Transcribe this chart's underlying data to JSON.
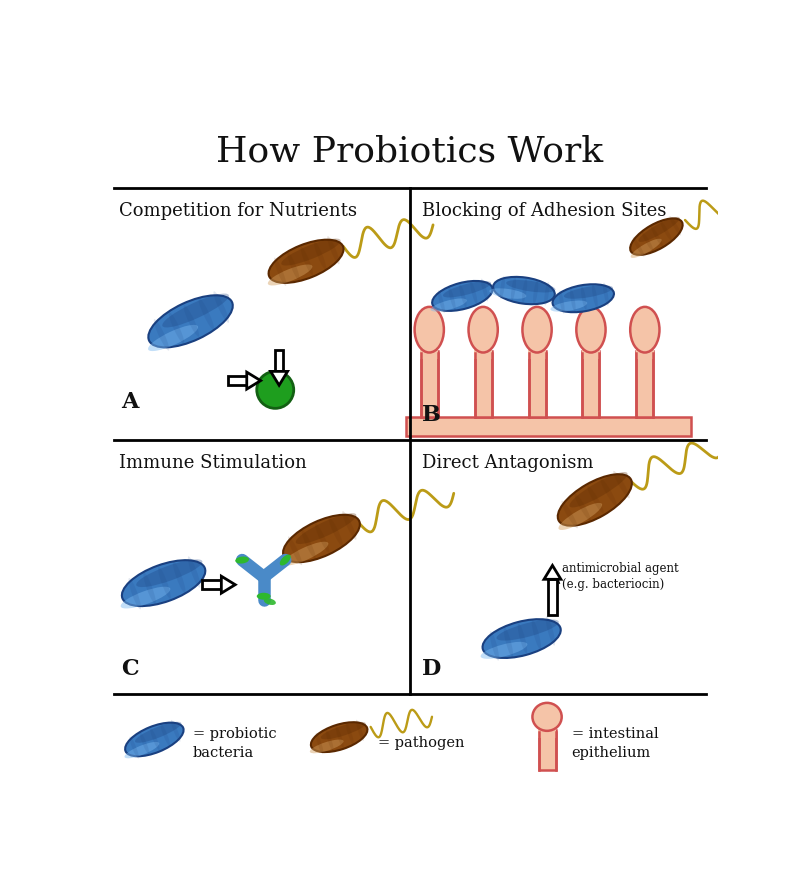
{
  "title": "How Probiotics Work",
  "title_fontsize": 26,
  "panel_titles": [
    "Competition for Nutrients",
    "Blocking of Adhesion Sites",
    "Immune Stimulation",
    "Direct Antagonism"
  ],
  "legend_labels": [
    "= probiotic\nbacteria",
    "= pathogen",
    "= intestinal\nepithelium"
  ],
  "bg_color": "#ffffff",
  "blue_color": "#3a7abf",
  "blue_dark": "#1a4080",
  "blue_light": "#7ab8f0",
  "brown_dark": "#5a2800",
  "brown_mid": "#8B4A10",
  "brown_light": "#c07830",
  "brown_highlight": "#d4a060",
  "flagella_color": "#b8960a",
  "green_circle": "#1e9e1e",
  "green_circle_dark": "#136013",
  "arrow_color": "#111111",
  "villi_fill": "#f5c4a8",
  "villi_outline": "#d05050",
  "villi_base": "#f0b090",
  "antibody_blue": "#4a8ac8",
  "antibody_green": "#2eb82e",
  "annotation_text": "antimicrobial agent\n(e.g. bacteriocin)"
}
